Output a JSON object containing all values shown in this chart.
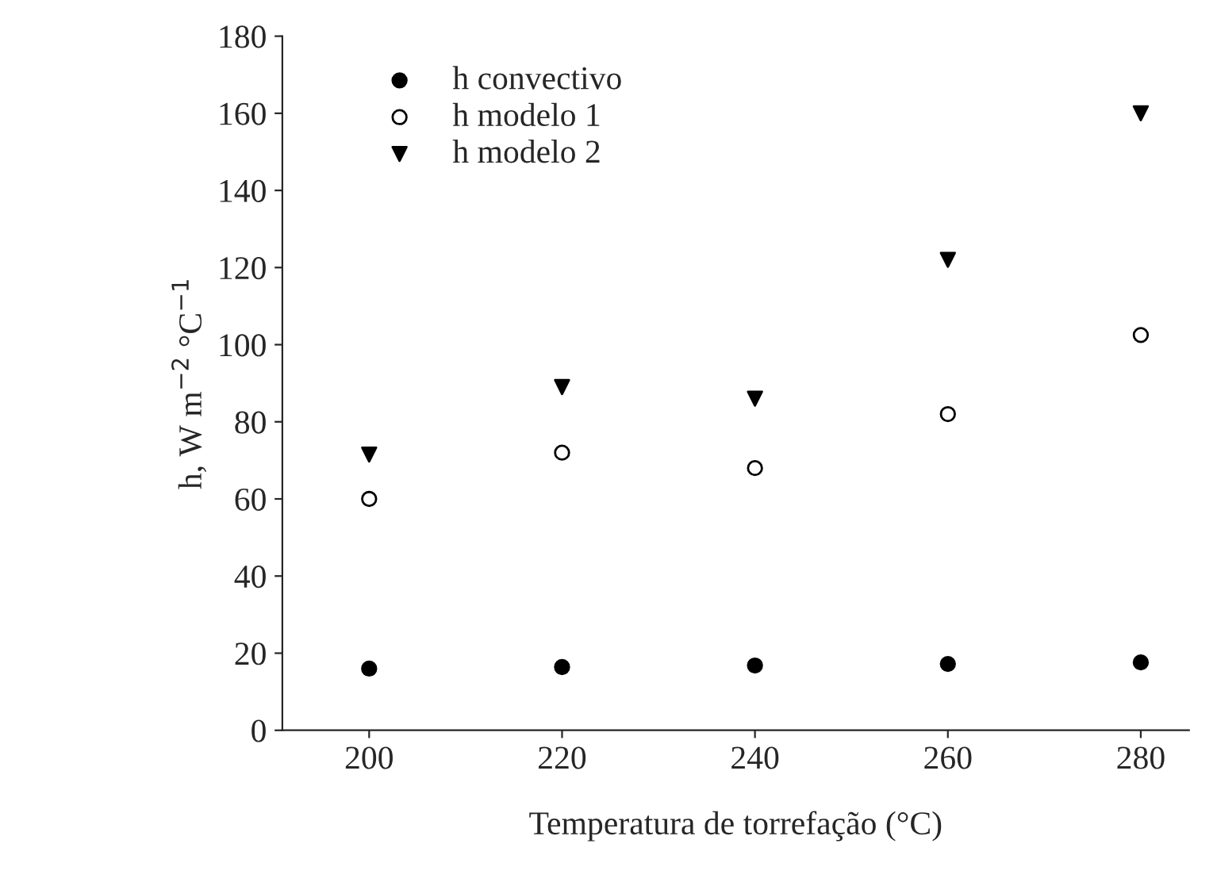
{
  "chart_data": {
    "type": "scatter",
    "xlabel": "Temperatura de torrefação (°C)",
    "ylabel": "h, W m$^{−2}$ °C$^{−1}$",
    "x": [
      200,
      220,
      240,
      260,
      280
    ],
    "series": [
      {
        "name": "h convectivo",
        "color": "#000000",
        "marker": "circle",
        "values": [
          16,
          16.4,
          16.8,
          17.2,
          17.6
        ]
      },
      {
        "name": "h modelo 1",
        "color": "#ffffff",
        "marker": "circle",
        "values": [
          60,
          72,
          68,
          82,
          102.5
        ]
      },
      {
        "name": "h modelo 2",
        "color": "#000000",
        "marker": "triangle",
        "values": [
          71.5,
          89,
          86,
          122,
          160
        ]
      }
    ],
    "xlim": [
      191,
      285
    ],
    "xticks": [
      200,
      220,
      240,
      260,
      280
    ],
    "ylim": [
      0,
      180
    ],
    "yticks": [
      0,
      20,
      40,
      60,
      80,
      100,
      120,
      140,
      160,
      180
    ],
    "grid": false,
    "legend": "top left"
  }
}
